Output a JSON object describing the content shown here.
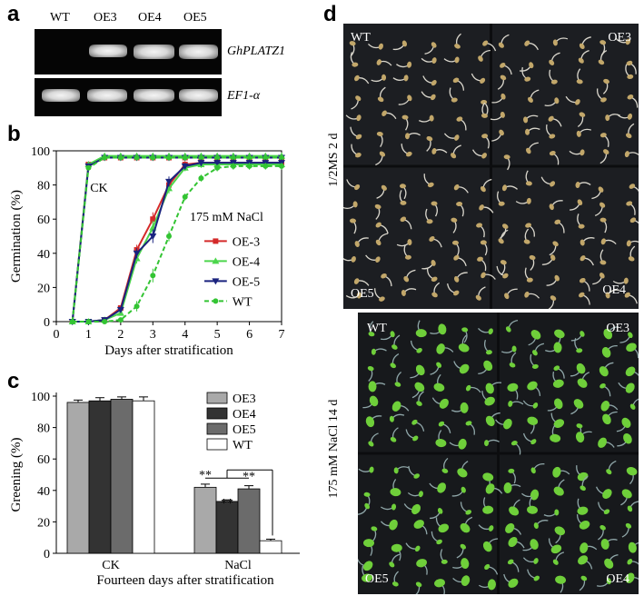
{
  "panels": {
    "a": "a",
    "b": "b",
    "c": "c",
    "d": "d"
  },
  "gel": {
    "lanes": [
      "WT",
      "OE3",
      "OE4",
      "OE5"
    ],
    "genes": [
      "GhPLATZ1",
      "EF1-α"
    ]
  },
  "chart_data": [
    {
      "panel": "b",
      "type": "line",
      "xlabel": "Days after stratification",
      "ylabel": "Germination (%)",
      "x": [
        0.5,
        1,
        1.5,
        2,
        2.5,
        3,
        3.5,
        4,
        4.5,
        5,
        5.5,
        6,
        6.5,
        7
      ],
      "xticks": [
        0,
        1,
        2,
        3,
        4,
        5,
        6,
        7
      ],
      "yticks": [
        0,
        20,
        40,
        60,
        80,
        100
      ],
      "xlim": [
        0,
        7
      ],
      "ylim": [
        0,
        100
      ],
      "annotations": [
        "CK",
        "175 mM NaCl"
      ],
      "legend_position": "right",
      "groups": [
        {
          "condition": "CK",
          "series": [
            {
              "name": "OE-3",
              "color": "#d42a2a",
              "values": [
                0,
                92,
                96,
                96,
                96,
                96,
                96,
                96,
                96,
                96,
                96,
                96,
                96,
                96
              ]
            },
            {
              "name": "OE-4",
              "color": "#4cd64c",
              "values": [
                0,
                92,
                97,
                97,
                97,
                97,
                97,
                97,
                97,
                97,
                97,
                97,
                97,
                97
              ]
            },
            {
              "name": "OE-5",
              "color": "#1a237e",
              "values": [
                0,
                91,
                96,
                96,
                96,
                96,
                96,
                96,
                96,
                96,
                96,
                96,
                96,
                96
              ]
            },
            {
              "name": "WT",
              "color": "#33c433",
              "values": [
                0,
                90,
                96,
                96,
                96,
                96,
                96,
                96,
                96,
                96,
                96,
                96,
                96,
                96
              ]
            }
          ]
        },
        {
          "condition": "175 mM NaCl",
          "series": [
            {
              "name": "OE-3",
              "color": "#d42a2a",
              "values": [
                0,
                0,
                1,
                8,
                42,
                60,
                80,
                92,
                93,
                93,
                93,
                93,
                93,
                93
              ]
            },
            {
              "name": "OE-4",
              "color": "#4cd64c",
              "values": [
                0,
                0,
                1,
                5,
                37,
                55,
                78,
                90,
                92,
                92,
                92,
                92,
                92,
                92
              ]
            },
            {
              "name": "OE-5",
              "color": "#1a237e",
              "values": [
                0,
                0,
                1,
                7,
                40,
                50,
                82,
                91,
                93,
                93,
                93,
                93,
                93,
                93
              ]
            },
            {
              "name": "WT",
              "color": "#33c433",
              "values": [
                0,
                0,
                0,
                1,
                9,
                27,
                50,
                73,
                84,
                90,
                91,
                91,
                91,
                91
              ]
            }
          ]
        }
      ]
    },
    {
      "panel": "c",
      "type": "bar",
      "xlabel": "Fourteen days after stratification",
      "ylabel": "Greening  (%)",
      "categories": [
        "CK",
        "NaCl"
      ],
      "yticks": [
        0,
        20,
        40,
        60,
        80,
        100
      ],
      "ylim": [
        0,
        100
      ],
      "legend_position": "top-right",
      "series": [
        {
          "name": "OE3",
          "color": "#a9a9a9",
          "values": [
            96,
            42
          ],
          "errors": [
            1.5,
            2
          ]
        },
        {
          "name": "OE4",
          "color": "#333333",
          "values": [
            97,
            33
          ],
          "errors": [
            2,
            1
          ]
        },
        {
          "name": "OE5",
          "color": "#6b6b6b",
          "values": [
            98,
            41
          ],
          "errors": [
            1.5,
            2
          ]
        },
        {
          "name": "WT",
          "color": "#ffffff",
          "values": [
            97,
            8
          ],
          "errors": [
            2.5,
            1
          ]
        }
      ],
      "annotations": [
        "**",
        "**",
        "**"
      ]
    }
  ],
  "photos": {
    "top": {
      "side_label": "1/2MS  2 d",
      "corners": [
        "WT",
        "OE3",
        "OE5",
        "OE4"
      ],
      "seedling_color": "#c2a76a"
    },
    "bottom": {
      "side_label": "175 mM NaCl  14 d",
      "corners": [
        "WT",
        "OE3",
        "OE5",
        "OE4"
      ],
      "seedling_color": "#6fcf3a"
    }
  }
}
